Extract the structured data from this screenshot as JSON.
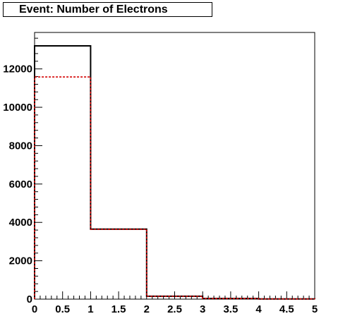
{
  "chart_data": {
    "type": "histogram",
    "title": "Event: Number of Electrons",
    "xlabel": "",
    "ylabel": "",
    "xlim": [
      0,
      5
    ],
    "ylim": [
      0,
      13900
    ],
    "x_ticks": [
      "0",
      "0.5",
      "1",
      "1.5",
      "2",
      "2.5",
      "3",
      "3.5",
      "4",
      "4.5",
      "5"
    ],
    "y_ticks": [
      "0",
      "2000",
      "4000",
      "6000",
      "8000",
      "10000",
      "12000"
    ],
    "bin_edges": [
      0,
      1,
      2,
      3,
      4,
      5
    ],
    "series": [
      {
        "color": "#000000",
        "line_style": "solid",
        "values": [
          13200,
          3650,
          150,
          30,
          10
        ]
      },
      {
        "color": "#d40000",
        "line_style": "dashed",
        "values": [
          11580,
          3640,
          150,
          30,
          10
        ]
      }
    ],
    "grid": false,
    "legend": "none"
  }
}
